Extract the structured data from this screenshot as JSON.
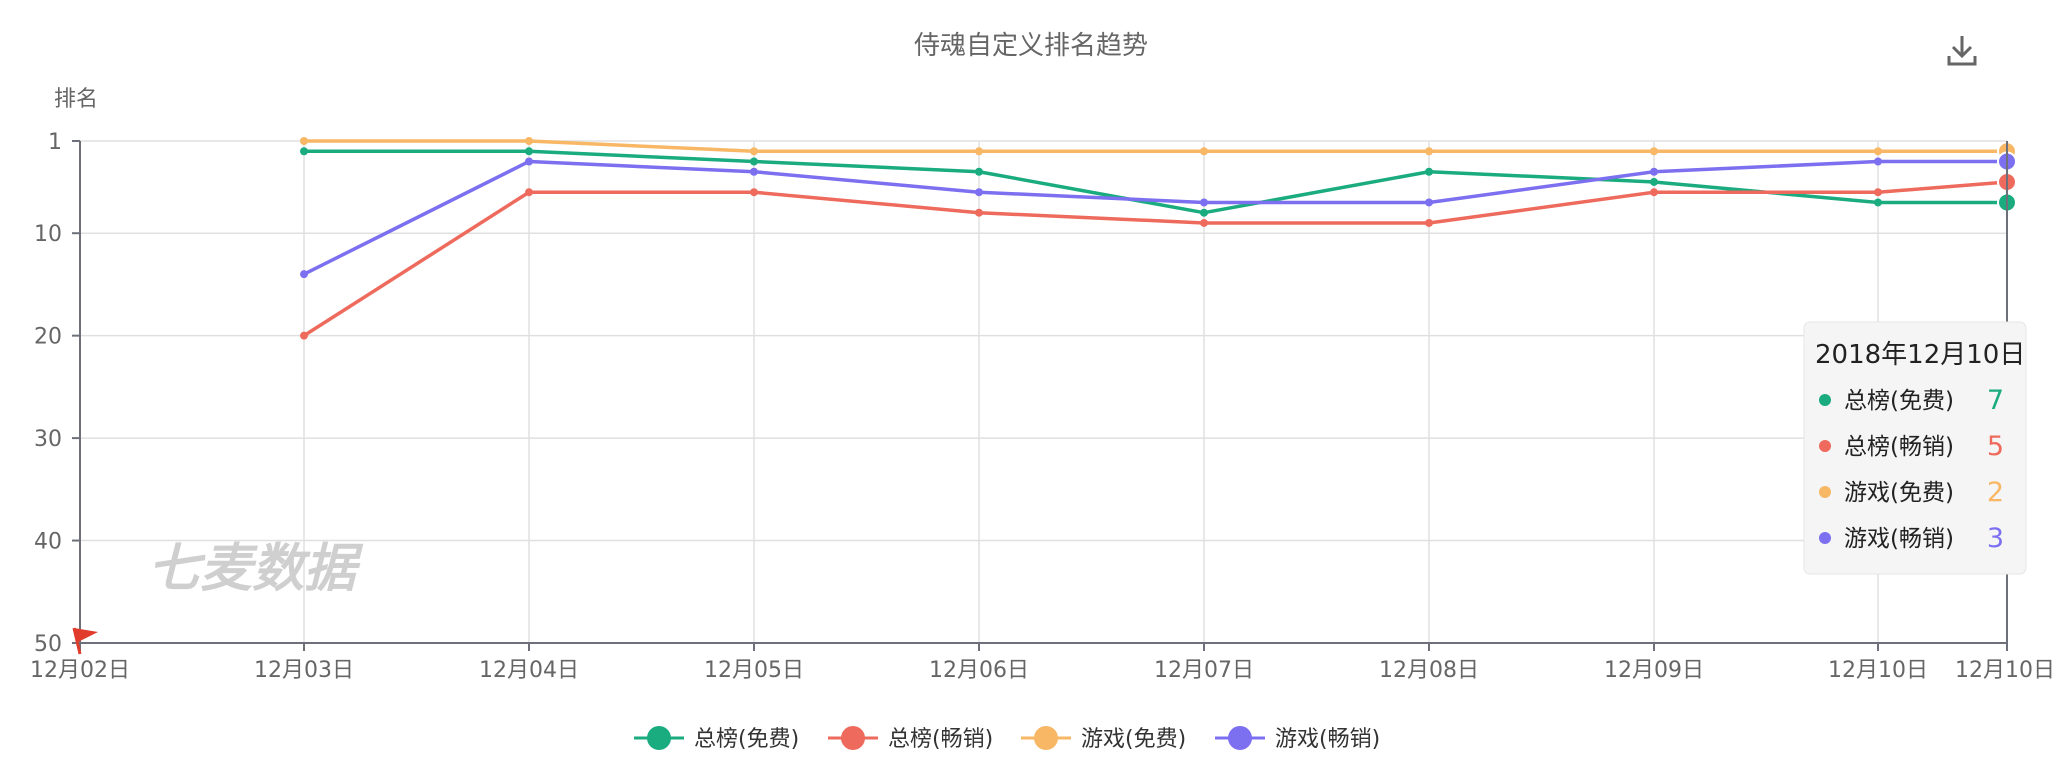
{
  "toolbar": {
    "download_icon": "download-icon"
  },
  "watermark": "七麦数据",
  "colors": {
    "axis": "#6e7079",
    "grid": "#e0e0e0",
    "text": "#666666"
  },
  "chart_data": {
    "type": "line",
    "title": "侍魂自定义排名趋势",
    "ylabel": "排名",
    "y_inverted": true,
    "ylim": [
      1,
      50
    ],
    "yticks": [
      "1",
      "10",
      "20",
      "30",
      "40",
      "50"
    ],
    "ytick_values": [
      1,
      10,
      20,
      30,
      40,
      50
    ],
    "categories": [
      "12月02日",
      "12月03日",
      "12月04日",
      "12月05日",
      "12月06日",
      "12月07日",
      "12月08日",
      "12月09日",
      "12月10日",
      "12月10日"
    ],
    "series": [
      {
        "name": "总榜(免费)",
        "color": "#1aab7f",
        "values": [
          null,
          2,
          2,
          3,
          4,
          8,
          4,
          5,
          7,
          7
        ]
      },
      {
        "name": "总榜(畅销)",
        "color": "#ee6a5c",
        "values": [
          null,
          20,
          6,
          6,
          8,
          9,
          9,
          6,
          6,
          5
        ]
      },
      {
        "name": "游戏(免费)",
        "color": "#f8b765",
        "values": [
          null,
          1,
          1,
          2,
          2,
          2,
          2,
          2,
          2,
          2
        ]
      },
      {
        "name": "游戏(畅销)",
        "color": "#7c6ff0",
        "values": [
          null,
          14,
          3,
          4,
          6,
          7,
          7,
          4,
          3,
          3
        ]
      }
    ],
    "tooltip": {
      "title": "2018年12月10日",
      "items": [
        {
          "name": "总榜(免费)",
          "value": "7",
          "color": "#1aab7f"
        },
        {
          "name": "总榜(畅销)",
          "value": "5",
          "color": "#ee6a5c"
        },
        {
          "name": "游戏(免费)",
          "value": "2",
          "color": "#f8b765"
        },
        {
          "name": "游戏(畅销)",
          "value": "3",
          "color": "#7c6ff0"
        }
      ]
    },
    "legend_position": "bottom-center",
    "grid": true
  }
}
